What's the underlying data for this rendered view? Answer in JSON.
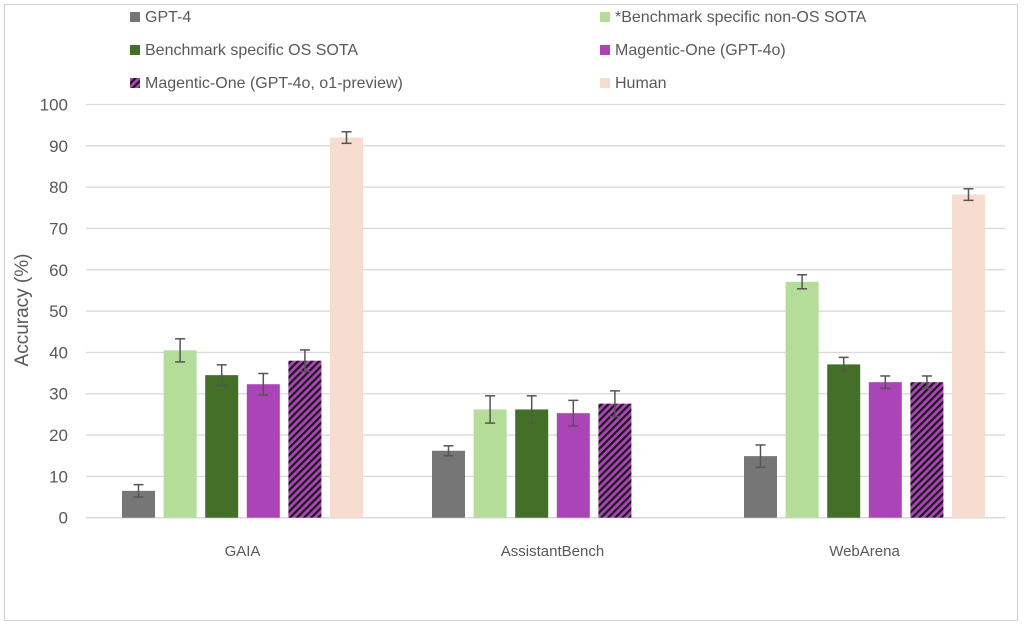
{
  "chart_data": {
    "type": "bar",
    "title": "",
    "xlabel": "",
    "ylabel": "Accuracy (%)",
    "ylim": [
      0,
      100
    ],
    "yticks": [
      0,
      10,
      20,
      30,
      40,
      50,
      60,
      70,
      80,
      90,
      100
    ],
    "grid": true,
    "legend_position": "top",
    "categories": [
      "GAIA",
      "AssistantBench",
      "WebArena"
    ],
    "series": [
      {
        "name": "GPT-4",
        "color": "#767676",
        "hatched": false,
        "values": [
          6.5,
          16.2,
          14.9
        ],
        "errors": [
          1.5,
          1.2,
          2.7
        ]
      },
      {
        "name": "*Benchmark specific non-OS SOTA",
        "color": "#b5dd9a",
        "hatched": false,
        "values": [
          40.5,
          26.2,
          57.1
        ],
        "errors": [
          2.8,
          3.3,
          1.7
        ]
      },
      {
        "name": "Benchmark specific OS SOTA",
        "color": "#436f28",
        "hatched": false,
        "values": [
          34.5,
          26.2,
          37.1
        ],
        "errors": [
          2.5,
          3.3,
          1.7
        ]
      },
      {
        "name": "Magentic-One (GPT-4o)",
        "color": "#ab44b6",
        "hatched": false,
        "values": [
          32.3,
          25.3,
          32.8
        ],
        "errors": [
          2.6,
          3.1,
          1.5
        ]
      },
      {
        "name": "Magentic-One (GPT-4o, o1-preview)",
        "color": "#ab44b6",
        "hatched": true,
        "values": [
          38.0,
          27.6,
          32.8
        ],
        "errors": [
          2.6,
          3.1,
          1.5
        ]
      },
      {
        "name": "Human",
        "color": "#f7ddd0",
        "hatched": false,
        "values": [
          92.0,
          null,
          78.2
        ],
        "errors": [
          1.4,
          null,
          1.4
        ]
      }
    ]
  }
}
